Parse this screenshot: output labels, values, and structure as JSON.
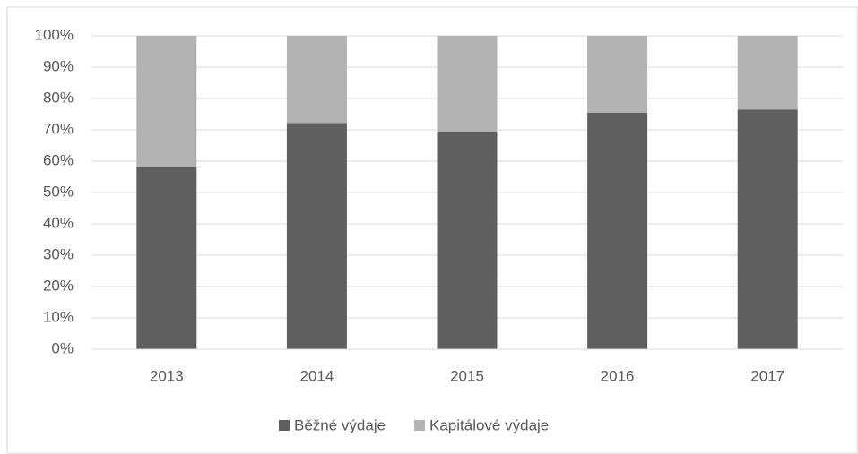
{
  "chart_data": {
    "type": "stacked_bar",
    "categories": [
      "2013",
      "2014",
      "2015",
      "2016",
      "2017"
    ],
    "series": [
      {
        "name": "Běžné výdaje",
        "color": "#5f5f5f",
        "values": [
          58,
          72.2,
          69.5,
          75.5,
          76.5
        ]
      },
      {
        "name": "Kapitálové výdaje",
        "color": "#b2b2b2",
        "values": [
          42,
          27.8,
          30.5,
          24.5,
          23.5
        ]
      }
    ],
    "ylim": [
      0,
      100
    ],
    "yticks": [
      {
        "value": 0,
        "label": "0%"
      },
      {
        "value": 10,
        "label": "10%"
      },
      {
        "value": 20,
        "label": "20%"
      },
      {
        "value": 30,
        "label": "30%"
      },
      {
        "value": 40,
        "label": "40%"
      },
      {
        "value": 50,
        "label": "50%"
      },
      {
        "value": 60,
        "label": "60%"
      },
      {
        "value": 70,
        "label": "70%"
      },
      {
        "value": 80,
        "label": "80%"
      },
      {
        "value": 90,
        "label": "90%"
      },
      {
        "value": 100,
        "label": "100%"
      }
    ],
    "grid": true,
    "legend": "bottom"
  }
}
